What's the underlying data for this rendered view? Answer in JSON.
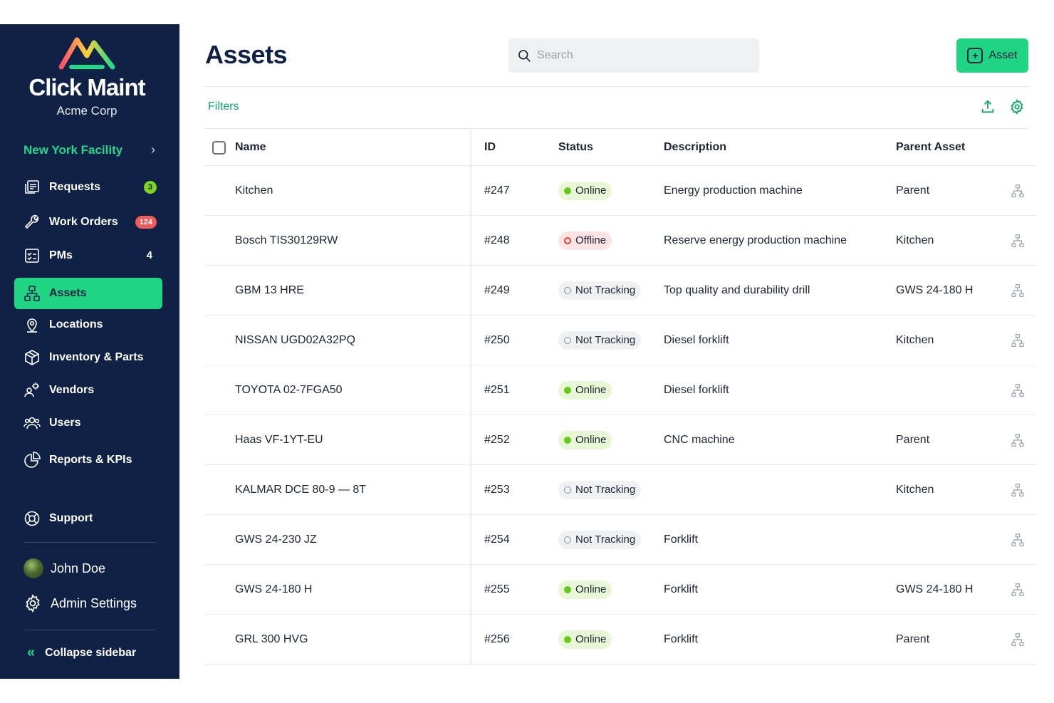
{
  "sidebar": {
    "brand": "Click Maint",
    "company": "Acme Corp",
    "facility": "New York Facility",
    "items": [
      {
        "label": "Requests",
        "badge": "3",
        "icon": "requests-icon"
      },
      {
        "label": "Work Orders",
        "badge": "124",
        "icon": "wrench-icon"
      },
      {
        "label": "PMs",
        "badge": "4",
        "icon": "checklist-icon"
      },
      {
        "label": "Assets",
        "badge": "",
        "icon": "hierarchy-icon"
      },
      {
        "label": "Locations",
        "badge": "",
        "icon": "location-pin-icon"
      },
      {
        "label": "Inventory & Parts",
        "badge": "",
        "icon": "box-icon"
      },
      {
        "label": "Vendors",
        "badge": "",
        "icon": "vendors-icon"
      },
      {
        "label": "Users",
        "badge": "",
        "icon": "users-icon"
      },
      {
        "label": "Reports & KPIs",
        "badge": "",
        "icon": "pie-chart-icon"
      },
      {
        "label": "Support",
        "badge": "",
        "icon": "lifebuoy-icon"
      }
    ],
    "user": "John Doe",
    "admin": "Admin Settings",
    "collapse": "Collapse sidebar"
  },
  "header": {
    "title": "Assets",
    "search_placeholder": "Search",
    "add_label": "Asset",
    "filters": "Filters"
  },
  "table": {
    "columns": [
      "Name",
      "ID",
      "Status",
      "Description",
      "Parent Asset"
    ],
    "rows": [
      {
        "name": "Kitchen",
        "id": "#247",
        "status": "Online",
        "description": "Energy production machine",
        "parent": "Parent"
      },
      {
        "name": "Bosch TIS30129RW",
        "id": "#248",
        "status": "Offline",
        "description": "Reserve energy production machine",
        "parent": "Kitchen"
      },
      {
        "name": "GBM 13 HRE",
        "id": "#249",
        "status": "Not Tracking",
        "description": "Top quality and durability drill",
        "parent": "GWS 24-180 H"
      },
      {
        "name": "NISSAN UGD02A32PQ",
        "id": "#250",
        "status": "Not Tracking",
        "description": "Diesel forklift",
        "parent": "Kitchen"
      },
      {
        "name": "TOYOTA 02-7FGA50",
        "id": "#251",
        "status": "Online",
        "description": "Diesel forklift",
        "parent": ""
      },
      {
        "name": "Haas VF-1YT-EU",
        "id": "#252",
        "status": "Online",
        "description": "CNC machine",
        "parent": "Parent"
      },
      {
        "name": "KALMAR DCE 80-9 — 8T",
        "id": "#253",
        "status": "Not Tracking",
        "description": "",
        "parent": "Kitchen"
      },
      {
        "name": "GWS 24-230 JZ",
        "id": "#254",
        "status": "Not Tracking",
        "description": "Forklift",
        "parent": ""
      },
      {
        "name": "GWS 24-180 H",
        "id": "#255",
        "status": "Online",
        "description": "Forklift",
        "parent": "GWS 24-180 H"
      },
      {
        "name": "GRL 300 HVG",
        "id": "#256",
        "status": "Online",
        "description": "Forklift",
        "parent": "Parent"
      }
    ]
  },
  "colors": {
    "sidebar_bg": "#0f2145",
    "accent": "#1fd483",
    "online": "#66c81c",
    "offline": "#e83c3c"
  }
}
